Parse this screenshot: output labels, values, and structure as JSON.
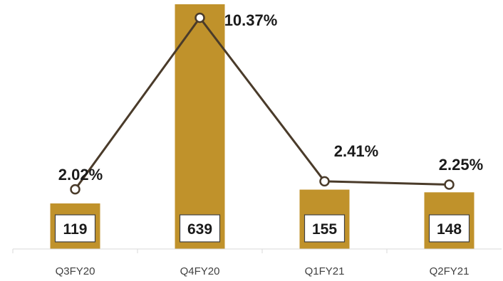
{
  "chart_data": {
    "type": "bar",
    "categories": [
      "Q3FY20",
      "Q4FY20",
      "Q1FY21",
      "Q2FY21"
    ],
    "series": [
      {
        "values": [
          119,
          639,
          155,
          148
        ],
        "type": "bar",
        "color": "#C0922B"
      },
      {
        "values": [
          2.02,
          10.37,
          2.41,
          2.25
        ],
        "type": "line",
        "color": "#4A3B2A"
      }
    ],
    "bar_value_labels": [
      "119",
      "639",
      "155",
      "148"
    ],
    "line_value_labels": [
      "2.02%",
      "10.37%",
      "2.41%",
      "2.25%"
    ],
    "bar_ylim": [
      0,
      639
    ],
    "line_ylim": [
      0,
      10.37
    ],
    "grid": false,
    "legend": "none"
  }
}
